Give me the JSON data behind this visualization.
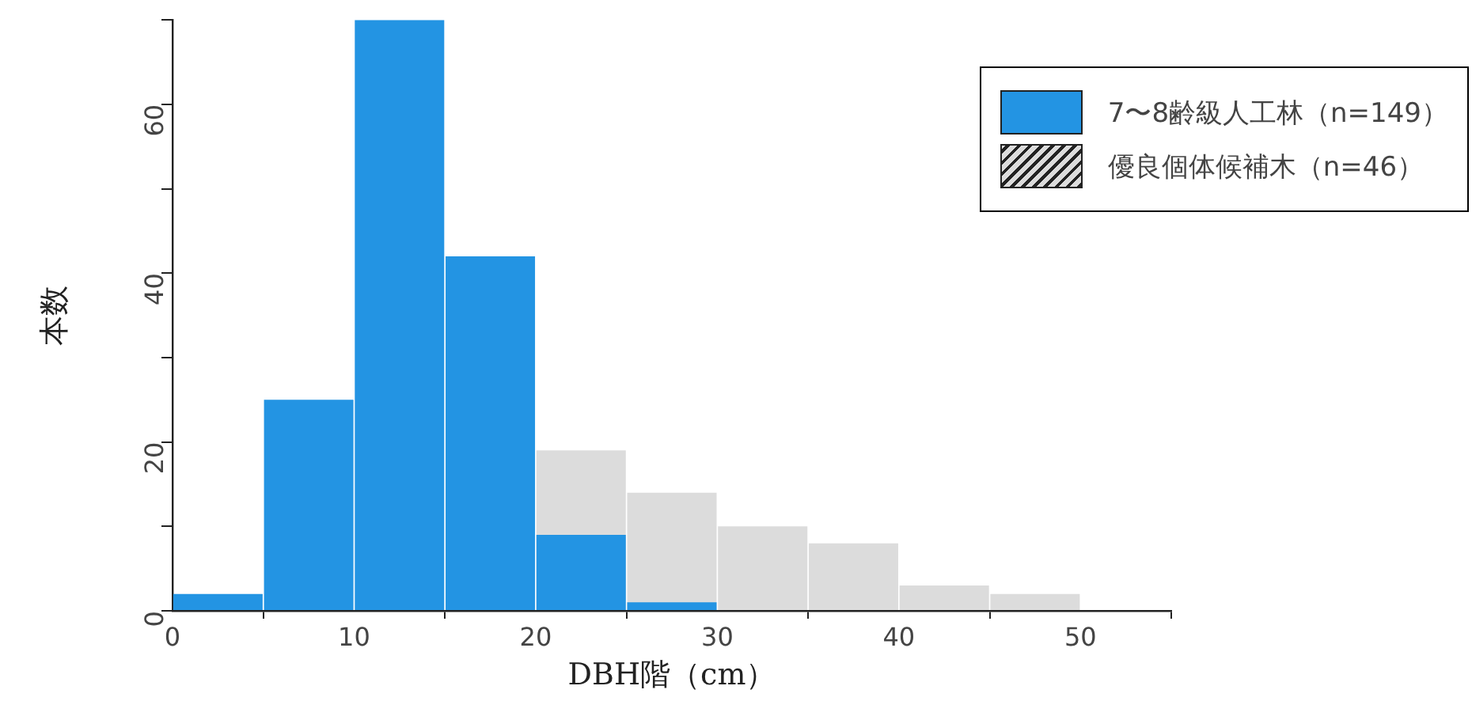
{
  "chart_data": {
    "type": "histogram",
    "xlabel": "DBH階（cm）",
    "ylabel": "本数",
    "bins": [
      0,
      5,
      10,
      15,
      20,
      25,
      30,
      35,
      40,
      45,
      50
    ],
    "series": [
      {
        "name": "7〜8齢級人工林（n=149）",
        "color": "#2394e3",
        "values": [
          2,
          25,
          70,
          42,
          9,
          1,
          0,
          0,
          0,
          0
        ]
      },
      {
        "name": "優良個体候補木（n=46）",
        "color": "#dcdcdc",
        "values": [
          null,
          null,
          null,
          null,
          19,
          14,
          10,
          8,
          3,
          2
        ]
      }
    ],
    "xlim": [
      0,
      55
    ],
    "xticks": [
      0,
      10,
      20,
      30,
      40,
      50
    ],
    "ylim": [
      0,
      70
    ],
    "yticks": [
      0,
      {
        "value": 10,
        "label": null
      },
      20,
      {
        "value": 30,
        "label": null
      },
      40,
      {
        "value": 50,
        "label": null
      },
      60,
      {
        "value": 70,
        "label": null
      }
    ],
    "grid": false,
    "legend": "top right"
  }
}
